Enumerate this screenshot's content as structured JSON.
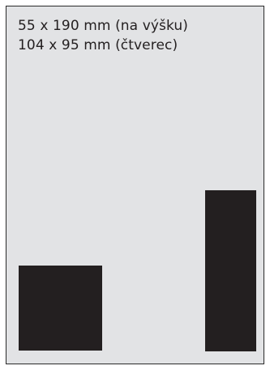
{
  "caption": {
    "line1": "55 x 190 mm (na výšku)",
    "line2": "104 x 95 mm (čtverec)"
  },
  "colors": {
    "background": "#e2e3e5",
    "shape_fill": "#231f20",
    "border": "#2a2a2a"
  }
}
